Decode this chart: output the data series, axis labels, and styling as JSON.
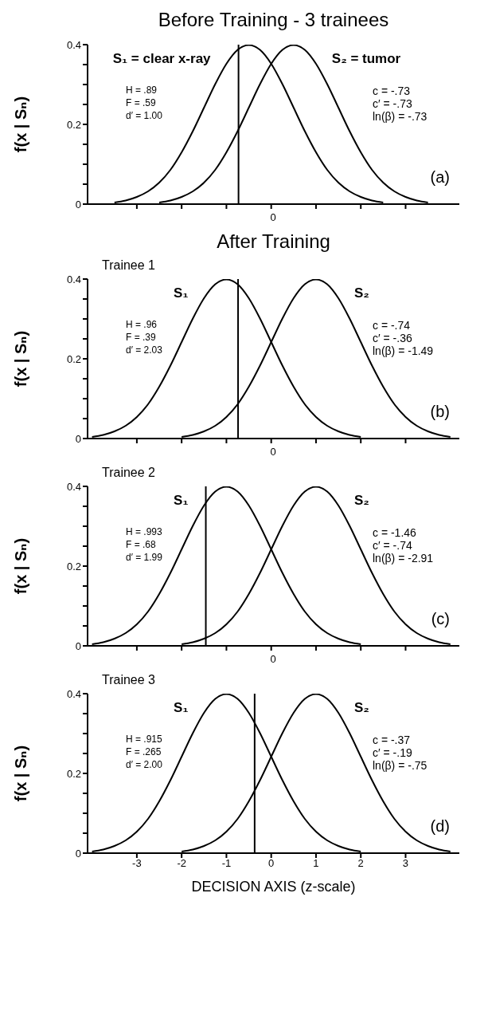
{
  "chart_data": [
    {
      "type": "line",
      "title": "Before Training - 3 trainees",
      "ylabel": "f(x | Sₙ)",
      "xlim": [
        -4.1,
        4.2
      ],
      "xticks": [
        {
          "value": -3,
          "label": null
        },
        {
          "value": -2,
          "label": null
        },
        {
          "value": -1,
          "label": null
        },
        0,
        {
          "value": 1,
          "label": null
        },
        {
          "value": 2,
          "label": null
        },
        {
          "value": 3,
          "label": null
        }
      ],
      "ylim": [
        0,
        0.4
      ],
      "yticks": [
        0,
        {
          "value": 0.05,
          "label": null
        },
        {
          "value": 0.1,
          "label": null
        },
        {
          "value": 0.15,
          "label": null
        },
        0.2,
        {
          "value": 0.25,
          "label": null
        },
        {
          "value": 0.3,
          "label": null
        },
        {
          "value": 0.35,
          "label": null
        },
        0.4
      ],
      "series": [
        {
          "name": "S₁ = clear x-ray",
          "color": "#000000",
          "x": [
            -3.5,
            -3.25,
            -3,
            -2.75,
            -2.5,
            -2.25,
            -2,
            -1.75,
            -1.5,
            -1.25,
            -1,
            -0.75,
            -0.5,
            -0.25,
            0,
            0.25,
            0.5,
            0.75,
            1,
            1.25,
            1.5,
            1.75,
            2,
            2.25,
            2.5
          ],
          "values": [
            0.004,
            0.009,
            0.018,
            0.032,
            0.054,
            0.086,
            0.13,
            0.183,
            0.242,
            0.301,
            0.352,
            0.387,
            0.399,
            0.387,
            0.352,
            0.301,
            0.242,
            0.183,
            0.13,
            0.086,
            0.054,
            0.032,
            0.018,
            0.009,
            0.004
          ]
        },
        {
          "name": "S₂ = tumor",
          "color": "#000000",
          "x": [
            -2.5,
            -2.25,
            -2,
            -1.75,
            -1.5,
            -1.25,
            -1,
            -0.75,
            -0.5,
            -0.25,
            0,
            0.25,
            0.5,
            0.75,
            1,
            1.25,
            1.5,
            1.75,
            2,
            2.25,
            2.5,
            2.75,
            3,
            3.25,
            3.5
          ],
          "values": [
            0.004,
            0.009,
            0.018,
            0.032,
            0.054,
            0.086,
            0.13,
            0.183,
            0.242,
            0.301,
            0.352,
            0.387,
            0.399,
            0.387,
            0.352,
            0.301,
            0.242,
            0.183,
            0.13,
            0.086,
            0.054,
            0.032,
            0.018,
            0.009,
            0.004
          ]
        }
      ],
      "ref_lines": [
        {
          "axis": "x",
          "value": -0.73,
          "color": "#000000"
        }
      ],
      "tick_labels": "y",
      "annotations": [
        "H = .89",
        "F = .59",
        "d′ = 1.00",
        "c = -.73",
        "c′ = -.73",
        "ln(β) = -.73",
        "(a)",
        "0"
      ]
    },
    {
      "type": "line",
      "title": "After Training",
      "subtitle": "Trainee 1",
      "ylabel": "f(x | Sₙ)",
      "xlim": [
        -4.1,
        4.2
      ],
      "xticks": [
        {
          "value": -3,
          "label": null
        },
        {
          "value": -2,
          "label": null
        },
        {
          "value": -1,
          "label": null
        },
        0,
        {
          "value": 1,
          "label": null
        },
        {
          "value": 2,
          "label": null
        },
        {
          "value": 3,
          "label": null
        }
      ],
      "ylim": [
        0,
        0.4
      ],
      "yticks": [
        0,
        {
          "value": 0.05,
          "label": null
        },
        {
          "value": 0.1,
          "label": null
        },
        {
          "value": 0.15,
          "label": null
        },
        0.2,
        {
          "value": 0.25,
          "label": null
        },
        {
          "value": 0.3,
          "label": null
        },
        {
          "value": 0.35,
          "label": null
        },
        0.4
      ],
      "series": [
        {
          "name": "S₁",
          "color": "#000000",
          "x": [
            -4,
            -3.75,
            -3.5,
            -3.25,
            -3,
            -2.75,
            -2.5,
            -2.25,
            -2,
            -1.75,
            -1.5,
            -1.25,
            -1,
            -0.75,
            -0.5,
            -0.25,
            0,
            0.25,
            0.5,
            0.75,
            1,
            1.25,
            1.5,
            1.75,
            2
          ],
          "values": [
            0.004,
            0.009,
            0.018,
            0.032,
            0.054,
            0.086,
            0.13,
            0.183,
            0.242,
            0.301,
            0.352,
            0.387,
            0.399,
            0.387,
            0.352,
            0.301,
            0.242,
            0.183,
            0.13,
            0.086,
            0.054,
            0.032,
            0.018,
            0.009,
            0.004
          ]
        },
        {
          "name": "S₂",
          "color": "#000000",
          "x": [
            -2,
            -1.75,
            -1.5,
            -1.25,
            -1,
            -0.75,
            -0.5,
            -0.25,
            0,
            0.25,
            0.5,
            0.75,
            1,
            1.25,
            1.5,
            1.75,
            2,
            2.25,
            2.5,
            2.75,
            3,
            3.25,
            3.5,
            3.75,
            4
          ],
          "values": [
            0.004,
            0.009,
            0.018,
            0.032,
            0.054,
            0.086,
            0.13,
            0.183,
            0.242,
            0.301,
            0.352,
            0.387,
            0.399,
            0.387,
            0.352,
            0.301,
            0.242,
            0.183,
            0.13,
            0.086,
            0.054,
            0.032,
            0.018,
            0.009,
            0.004
          ]
        }
      ],
      "ref_lines": [
        {
          "axis": "x",
          "value": -0.74,
          "color": "#000000"
        }
      ],
      "tick_labels": "y",
      "annotations": [
        "H = .96",
        "F = .39",
        "d′ = 2.03",
        "c = -.74",
        "c′ = -.36",
        "ln(β) = -1.49",
        "(b)",
        "0"
      ]
    },
    {
      "type": "line",
      "subtitle": "Trainee 2",
      "ylabel": "f(x | Sₙ)",
      "xlim": [
        -4.1,
        4.2
      ],
      "xticks": [
        {
          "value": -3,
          "label": null
        },
        {
          "value": -2,
          "label": null
        },
        {
          "value": -1,
          "label": null
        },
        0,
        {
          "value": 1,
          "label": null
        },
        {
          "value": 2,
          "label": null
        },
        {
          "value": 3,
          "label": null
        }
      ],
      "ylim": [
        0,
        0.4
      ],
      "yticks": [
        0,
        {
          "value": 0.05,
          "label": null
        },
        {
          "value": 0.1,
          "label": null
        },
        {
          "value": 0.15,
          "label": null
        },
        0.2,
        {
          "value": 0.25,
          "label": null
        },
        {
          "value": 0.3,
          "label": null
        },
        {
          "value": 0.35,
          "label": null
        },
        0.4
      ],
      "series": [
        {
          "name": "S₁",
          "color": "#000000",
          "x": [
            -4,
            -3.75,
            -3.5,
            -3.25,
            -3,
            -2.75,
            -2.5,
            -2.25,
            -2,
            -1.75,
            -1.5,
            -1.25,
            -1,
            -0.75,
            -0.5,
            -0.25,
            0,
            0.25,
            0.5,
            0.75,
            1,
            1.25,
            1.5,
            1.75,
            2
          ],
          "values": [
            0.004,
            0.009,
            0.018,
            0.032,
            0.054,
            0.086,
            0.13,
            0.183,
            0.242,
            0.301,
            0.352,
            0.387,
            0.399,
            0.387,
            0.352,
            0.301,
            0.242,
            0.183,
            0.13,
            0.086,
            0.054,
            0.032,
            0.018,
            0.009,
            0.004
          ]
        },
        {
          "name": "S₂",
          "color": "#000000",
          "x": [
            -2,
            -1.75,
            -1.5,
            -1.25,
            -1,
            -0.75,
            -0.5,
            -0.25,
            0,
            0.25,
            0.5,
            0.75,
            1,
            1.25,
            1.5,
            1.75,
            2,
            2.25,
            2.5,
            2.75,
            3,
            3.25,
            3.5,
            3.75,
            4
          ],
          "values": [
            0.004,
            0.009,
            0.018,
            0.032,
            0.054,
            0.086,
            0.13,
            0.183,
            0.242,
            0.301,
            0.352,
            0.387,
            0.399,
            0.387,
            0.352,
            0.301,
            0.242,
            0.183,
            0.13,
            0.086,
            0.054,
            0.032,
            0.018,
            0.009,
            0.004
          ]
        }
      ],
      "ref_lines": [
        {
          "axis": "x",
          "value": -1.46,
          "color": "#000000"
        }
      ],
      "tick_labels": "y",
      "annotations": [
        "H = .993",
        "F = .68",
        "d′ = 1.99",
        "c = -1.46",
        "c′ = -.74",
        "ln(β) = -2.91",
        "(c)",
        "0"
      ]
    },
    {
      "type": "line",
      "subtitle": "Trainee 3",
      "xlabel": "DECISION AXIS (z-scale)",
      "ylabel": "f(x | Sₙ)",
      "xlim": [
        -4.1,
        4.2
      ],
      "xticks": [
        -3,
        -2,
        -1,
        0,
        1,
        2,
        3
      ],
      "ylim": [
        0,
        0.4
      ],
      "yticks": [
        0,
        {
          "value": 0.05,
          "label": null
        },
        {
          "value": 0.1,
          "label": null
        },
        {
          "value": 0.15,
          "label": null
        },
        0.2,
        {
          "value": 0.25,
          "label": null
        },
        {
          "value": 0.3,
          "label": null
        },
        {
          "value": 0.35,
          "label": null
        },
        0.4
      ],
      "series": [
        {
          "name": "S₁",
          "color": "#000000",
          "x": [
            -4,
            -3.75,
            -3.5,
            -3.25,
            -3,
            -2.75,
            -2.5,
            -2.25,
            -2,
            -1.75,
            -1.5,
            -1.25,
            -1,
            -0.75,
            -0.5,
            -0.25,
            0,
            0.25,
            0.5,
            0.75,
            1,
            1.25,
            1.5,
            1.75,
            2
          ],
          "values": [
            0.004,
            0.009,
            0.018,
            0.032,
            0.054,
            0.086,
            0.13,
            0.183,
            0.242,
            0.301,
            0.352,
            0.387,
            0.399,
            0.387,
            0.352,
            0.301,
            0.242,
            0.183,
            0.13,
            0.086,
            0.054,
            0.032,
            0.018,
            0.009,
            0.004
          ]
        },
        {
          "name": "S₂",
          "color": "#000000",
          "x": [
            -2,
            -1.75,
            -1.5,
            -1.25,
            -1,
            -0.75,
            -0.5,
            -0.25,
            0,
            0.25,
            0.5,
            0.75,
            1,
            1.25,
            1.5,
            1.75,
            2,
            2.25,
            2.5,
            2.75,
            3,
            3.25,
            3.5,
            3.75,
            4
          ],
          "values": [
            0.004,
            0.009,
            0.018,
            0.032,
            0.054,
            0.086,
            0.13,
            0.183,
            0.242,
            0.301,
            0.352,
            0.387,
            0.399,
            0.387,
            0.352,
            0.301,
            0.242,
            0.183,
            0.13,
            0.086,
            0.054,
            0.032,
            0.018,
            0.009,
            0.004
          ]
        }
      ],
      "ref_lines": [
        {
          "axis": "x",
          "value": -0.37,
          "color": "#000000"
        }
      ],
      "annotations": [
        "H = .915",
        "F = .265",
        "d′ = 2.00",
        "c = -.37",
        "c′ = -.19",
        "ln(β) = -.75",
        "(d)"
      ]
    }
  ]
}
